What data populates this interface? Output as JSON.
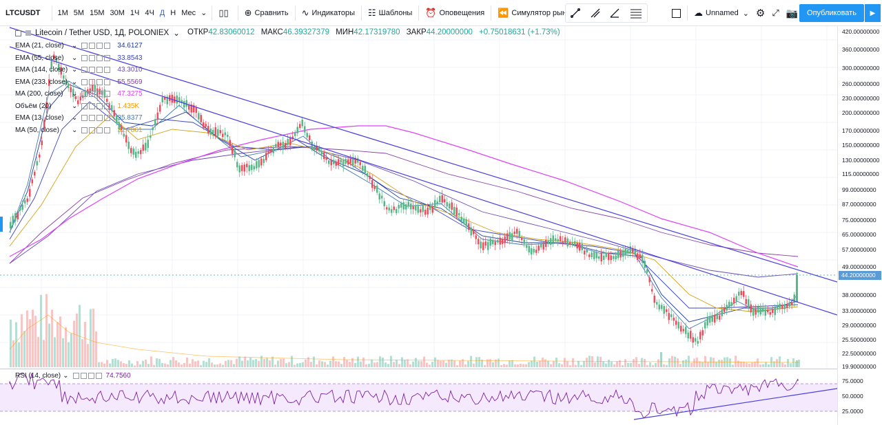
{
  "toolbar": {
    "symbol": "LTCUSDT",
    "timeframes": [
      "1М",
      "5М",
      "15М",
      "30М",
      "1Ч",
      "4Ч",
      "Д",
      "Н",
      "Мес"
    ],
    "active_timeframe": "Д",
    "compare_label": "Сравнить",
    "indicators_label": "Индикаторы",
    "templates_label": "Шаблоны",
    "alerts_label": "Оповещения",
    "simulator_label": "Симулятор рынка",
    "layout_name": "Unnamed",
    "publish_label": "Опубликовать"
  },
  "legend": {
    "title": "Litecoin / Tether USD, 1Д, POLONIEX",
    "open_key": "ОТКР",
    "open_val": "42.83060012",
    "high_key": "МАКС",
    "high_val": "46.39327379",
    "low_key": "МИН",
    "low_val": "42.17319780",
    "close_key": "ЗАКР",
    "close_val": "44.20000000",
    "change": "+0.75018631 (+1.73%)"
  },
  "indicators": [
    {
      "name": "EMA (21, close)",
      "value": "34.6127",
      "color": "#1e3a9a"
    },
    {
      "name": "EMA (55, close)",
      "value": "33.8543",
      "color": "#3b44c4"
    },
    {
      "name": "EMA (144, close)",
      "value": "43.3010",
      "color": "#6b4bb8"
    },
    {
      "name": "EMA (233, close)",
      "value": "55.5569",
      "color": "#8a3fa8"
    },
    {
      "name": "MA (200, close)",
      "value": "47.3275",
      "color": "#e040fb"
    },
    {
      "name": "Объём (20)",
      "value": "1.435K",
      "color": "#ff9800"
    },
    {
      "name": "EMA (13, close)",
      "value": "35.8377",
      "color": "#3d7ab8"
    },
    {
      "name": "MA (50, close)",
      "value": "32.7861",
      "color": "#d4a017"
    }
  ],
  "price_axis": {
    "labels": [
      "420.00000000",
      "360.00000000",
      "300.00000000",
      "260.00000000",
      "230.00000000",
      "200.00000000",
      "170.00000000",
      "150.00000000",
      "130.00000000",
      "115.00000000",
      "99.00000000",
      "87.00000000",
      "75.00000000",
      "65.00000000",
      "57.00000000",
      "49.00000000",
      "38.00000000",
      "33.00000000",
      "29.00000000",
      "25.50000000",
      "22.50000000",
      "19.90000000"
    ],
    "current_price": "44.20000000"
  },
  "rsi": {
    "name": "RSI (14, close)",
    "value": "74.7560",
    "axis_labels": [
      "75.0000",
      "50.0000",
      "25.0000"
    ]
  }
}
